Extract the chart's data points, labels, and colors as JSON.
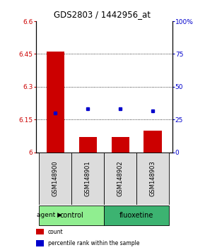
{
  "title": "GDS2803 / 1442956_at",
  "samples": [
    "GSM148900",
    "GSM148901",
    "GSM148902",
    "GSM148903"
  ],
  "groups": [
    "control",
    "control",
    "fluoxetine",
    "fluoxetine"
  ],
  "red_values": [
    6.46,
    6.07,
    6.07,
    6.1
  ],
  "blue_values": [
    6.18,
    6.2,
    6.2,
    6.19
  ],
  "ylim_left": [
    6.0,
    6.6
  ],
  "ylim_right": [
    0,
    100
  ],
  "yticks_left": [
    6.0,
    6.15,
    6.3,
    6.45,
    6.6
  ],
  "ytick_labels_left": [
    "6",
    "6.15",
    "6.3",
    "6.45",
    "6.6"
  ],
  "yticks_right": [
    0,
    25,
    50,
    75,
    100
  ],
  "ytick_labels_right": [
    "0",
    "25",
    "50",
    "75",
    "100%"
  ],
  "hlines": [
    6.15,
    6.3,
    6.45
  ],
  "bar_width": 0.55,
  "ctrl_color": "#90EE90",
  "fluo_color": "#3CB371",
  "agent_label": "agent",
  "legend_items": [
    {
      "label": "count",
      "color": "#CC0000"
    },
    {
      "label": "percentile rank within the sample",
      "color": "#0000CC"
    }
  ],
  "bar_color": "#CC0000",
  "dot_color": "#0000CC",
  "background_color": "#FFFFFF",
  "label_color_left": "#CC0000",
  "label_color_right": "#0000CC",
  "sample_box_color": "#DCDCDC",
  "title_fontsize": 8.5
}
